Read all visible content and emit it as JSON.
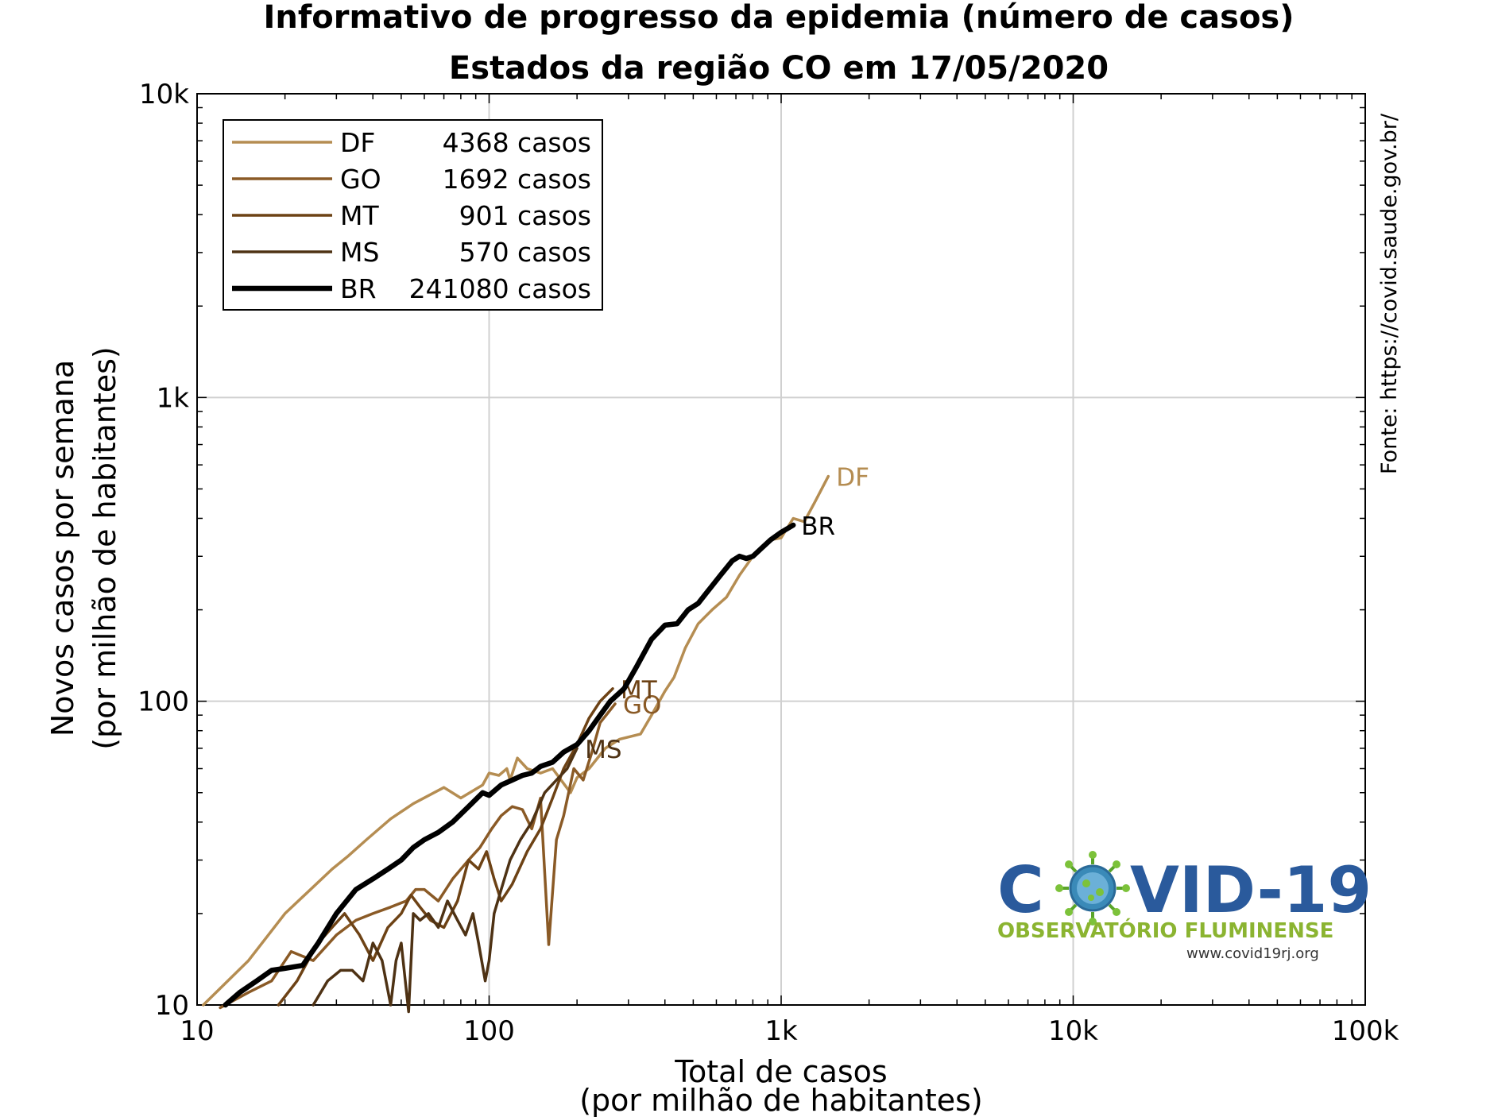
{
  "chart_data": {
    "type": "line",
    "title": "Informativo de progresso da epidemia (número de casos)",
    "subtitle": "Estados da região CO em 17/05/2020",
    "xlabel": "Total de casos",
    "xlabel2": "(por milhão de habitantes)",
    "ylabel": "Novos casos por semana",
    "ylabel2": "(por milhão de habitantes)",
    "x_scale": "log",
    "y_scale": "log",
    "xlim": [
      10,
      100000
    ],
    "ylim": [
      10,
      10000
    ],
    "x_ticks": [
      {
        "value": 10,
        "label": "10"
      },
      {
        "value": 100,
        "label": "100"
      },
      {
        "value": 1000,
        "label": "1k"
      },
      {
        "value": 10000,
        "label": "10k"
      },
      {
        "value": 100000,
        "label": "100k"
      }
    ],
    "y_ticks": [
      {
        "value": 10,
        "label": "10"
      },
      {
        "value": 100,
        "label": "100"
      },
      {
        "value": 1000,
        "label": "1k"
      },
      {
        "value": 10000,
        "label": "10k"
      }
    ],
    "grid": true,
    "legend_position": "top-left",
    "source_note": "Fonte: https://covid.saude.gov.br/",
    "series": [
      {
        "name": "DF",
        "cases_text": "4368 casos",
        "color": "#b58d52",
        "width": 3.5,
        "x": [
          10.5,
          15,
          20,
          29,
          33,
          38,
          46,
          55,
          70,
          80,
          95,
          100,
          108,
          115,
          118,
          125,
          135,
          150,
          165,
          190,
          200,
          220,
          250,
          280,
          330,
          360,
          400,
          430,
          470,
          520,
          580,
          650,
          720,
          800,
          850,
          920,
          1000,
          1100,
          1200,
          1300,
          1450
        ],
        "y": [
          10,
          14,
          20,
          28,
          31,
          35,
          41,
          46,
          52,
          48,
          53,
          58,
          57,
          60,
          55,
          65,
          60,
          58,
          60,
          50,
          56,
          60,
          70,
          75,
          78,
          90,
          108,
          120,
          150,
          180,
          200,
          220,
          260,
          300,
          320,
          340,
          345,
          400,
          390,
          450,
          550
        ]
      },
      {
        "name": "GO",
        "cases_text": "1692 casos",
        "color": "#8a5a26",
        "width": 3.5,
        "x": [
          12,
          15,
          18,
          21,
          25,
          30,
          35,
          40,
          46,
          52,
          56,
          60,
          67,
          75,
          85,
          93,
          102,
          110,
          120,
          130,
          140,
          150,
          160,
          170,
          180,
          195,
          210,
          225,
          240,
          270
        ],
        "y": [
          9.8,
          11,
          12,
          15,
          14,
          17,
          19,
          20,
          21,
          22,
          24,
          24,
          22,
          26,
          30,
          33,
          38,
          42,
          45,
          44,
          38,
          48,
          15.8,
          35,
          42,
          60,
          55,
          68,
          85,
          98
        ]
      },
      {
        "name": "MT",
        "cases_text": "901 casos",
        "color": "#6d4215",
        "width": 3.5,
        "x": [
          19,
          22,
          24,
          26,
          29,
          32,
          36,
          40,
          45,
          50,
          54,
          58,
          63,
          70,
          78,
          85,
          92,
          98,
          104,
          110,
          120,
          135,
          150,
          165,
          180,
          200,
          220,
          240,
          265
        ],
        "y": [
          10,
          12,
          14,
          16,
          18,
          20,
          17,
          14,
          18,
          20,
          23,
          21,
          19,
          18,
          22,
          30,
          28,
          32,
          26,
          22,
          25,
          32,
          38,
          48,
          60,
          72,
          88,
          100,
          110
        ]
      },
      {
        "name": "MS",
        "cases_text": "570 casos",
        "color": "#4e3214",
        "width": 3.5,
        "x": [
          25,
          28,
          31,
          34,
          37,
          40,
          43,
          46,
          48,
          50,
          53,
          55,
          58,
          62,
          67,
          72,
          78,
          83,
          88,
          92,
          97,
          100,
          104,
          110,
          118,
          128,
          140,
          155,
          170,
          185,
          200
        ],
        "y": [
          10,
          12,
          13,
          13,
          12,
          16,
          14,
          10,
          14,
          16,
          9.5,
          20,
          19,
          20,
          18,
          22,
          19,
          17,
          20,
          16,
          12,
          14,
          20,
          24,
          30,
          35,
          40,
          50,
          55,
          60,
          70
        ]
      },
      {
        "name": "BR",
        "cases_text": "241080 casos",
        "color": "#000000",
        "width": 6.5,
        "x": [
          12.5,
          14,
          16,
          18,
          20,
          23,
          26,
          30,
          35,
          40,
          45,
          50,
          55,
          60,
          67,
          75,
          85,
          95,
          100,
          110,
          120,
          130,
          140,
          150,
          165,
          180,
          200,
          220,
          240,
          260,
          290,
          320,
          360,
          400,
          440,
          480,
          520,
          560,
          620,
          680,
          720,
          760,
          800,
          860,
          920,
          1000,
          1100
        ],
        "y": [
          10,
          11,
          12,
          13,
          13.2,
          13.5,
          16,
          20,
          24,
          26,
          28,
          30,
          33,
          35,
          37,
          40,
          45,
          50,
          49,
          53,
          55,
          57,
          58,
          61,
          63,
          68,
          72,
          80,
          90,
          100,
          110,
          130,
          160,
          178,
          180,
          200,
          210,
          230,
          260,
          290,
          300,
          295,
          300,
          320,
          340,
          360,
          380
        ]
      }
    ]
  },
  "logo": {
    "word_left": "C",
    "word_right": "VID-19",
    "subtitle": "OBSERVATÓRIO FLUMINENSE",
    "url": "www.covid19rj.org"
  }
}
